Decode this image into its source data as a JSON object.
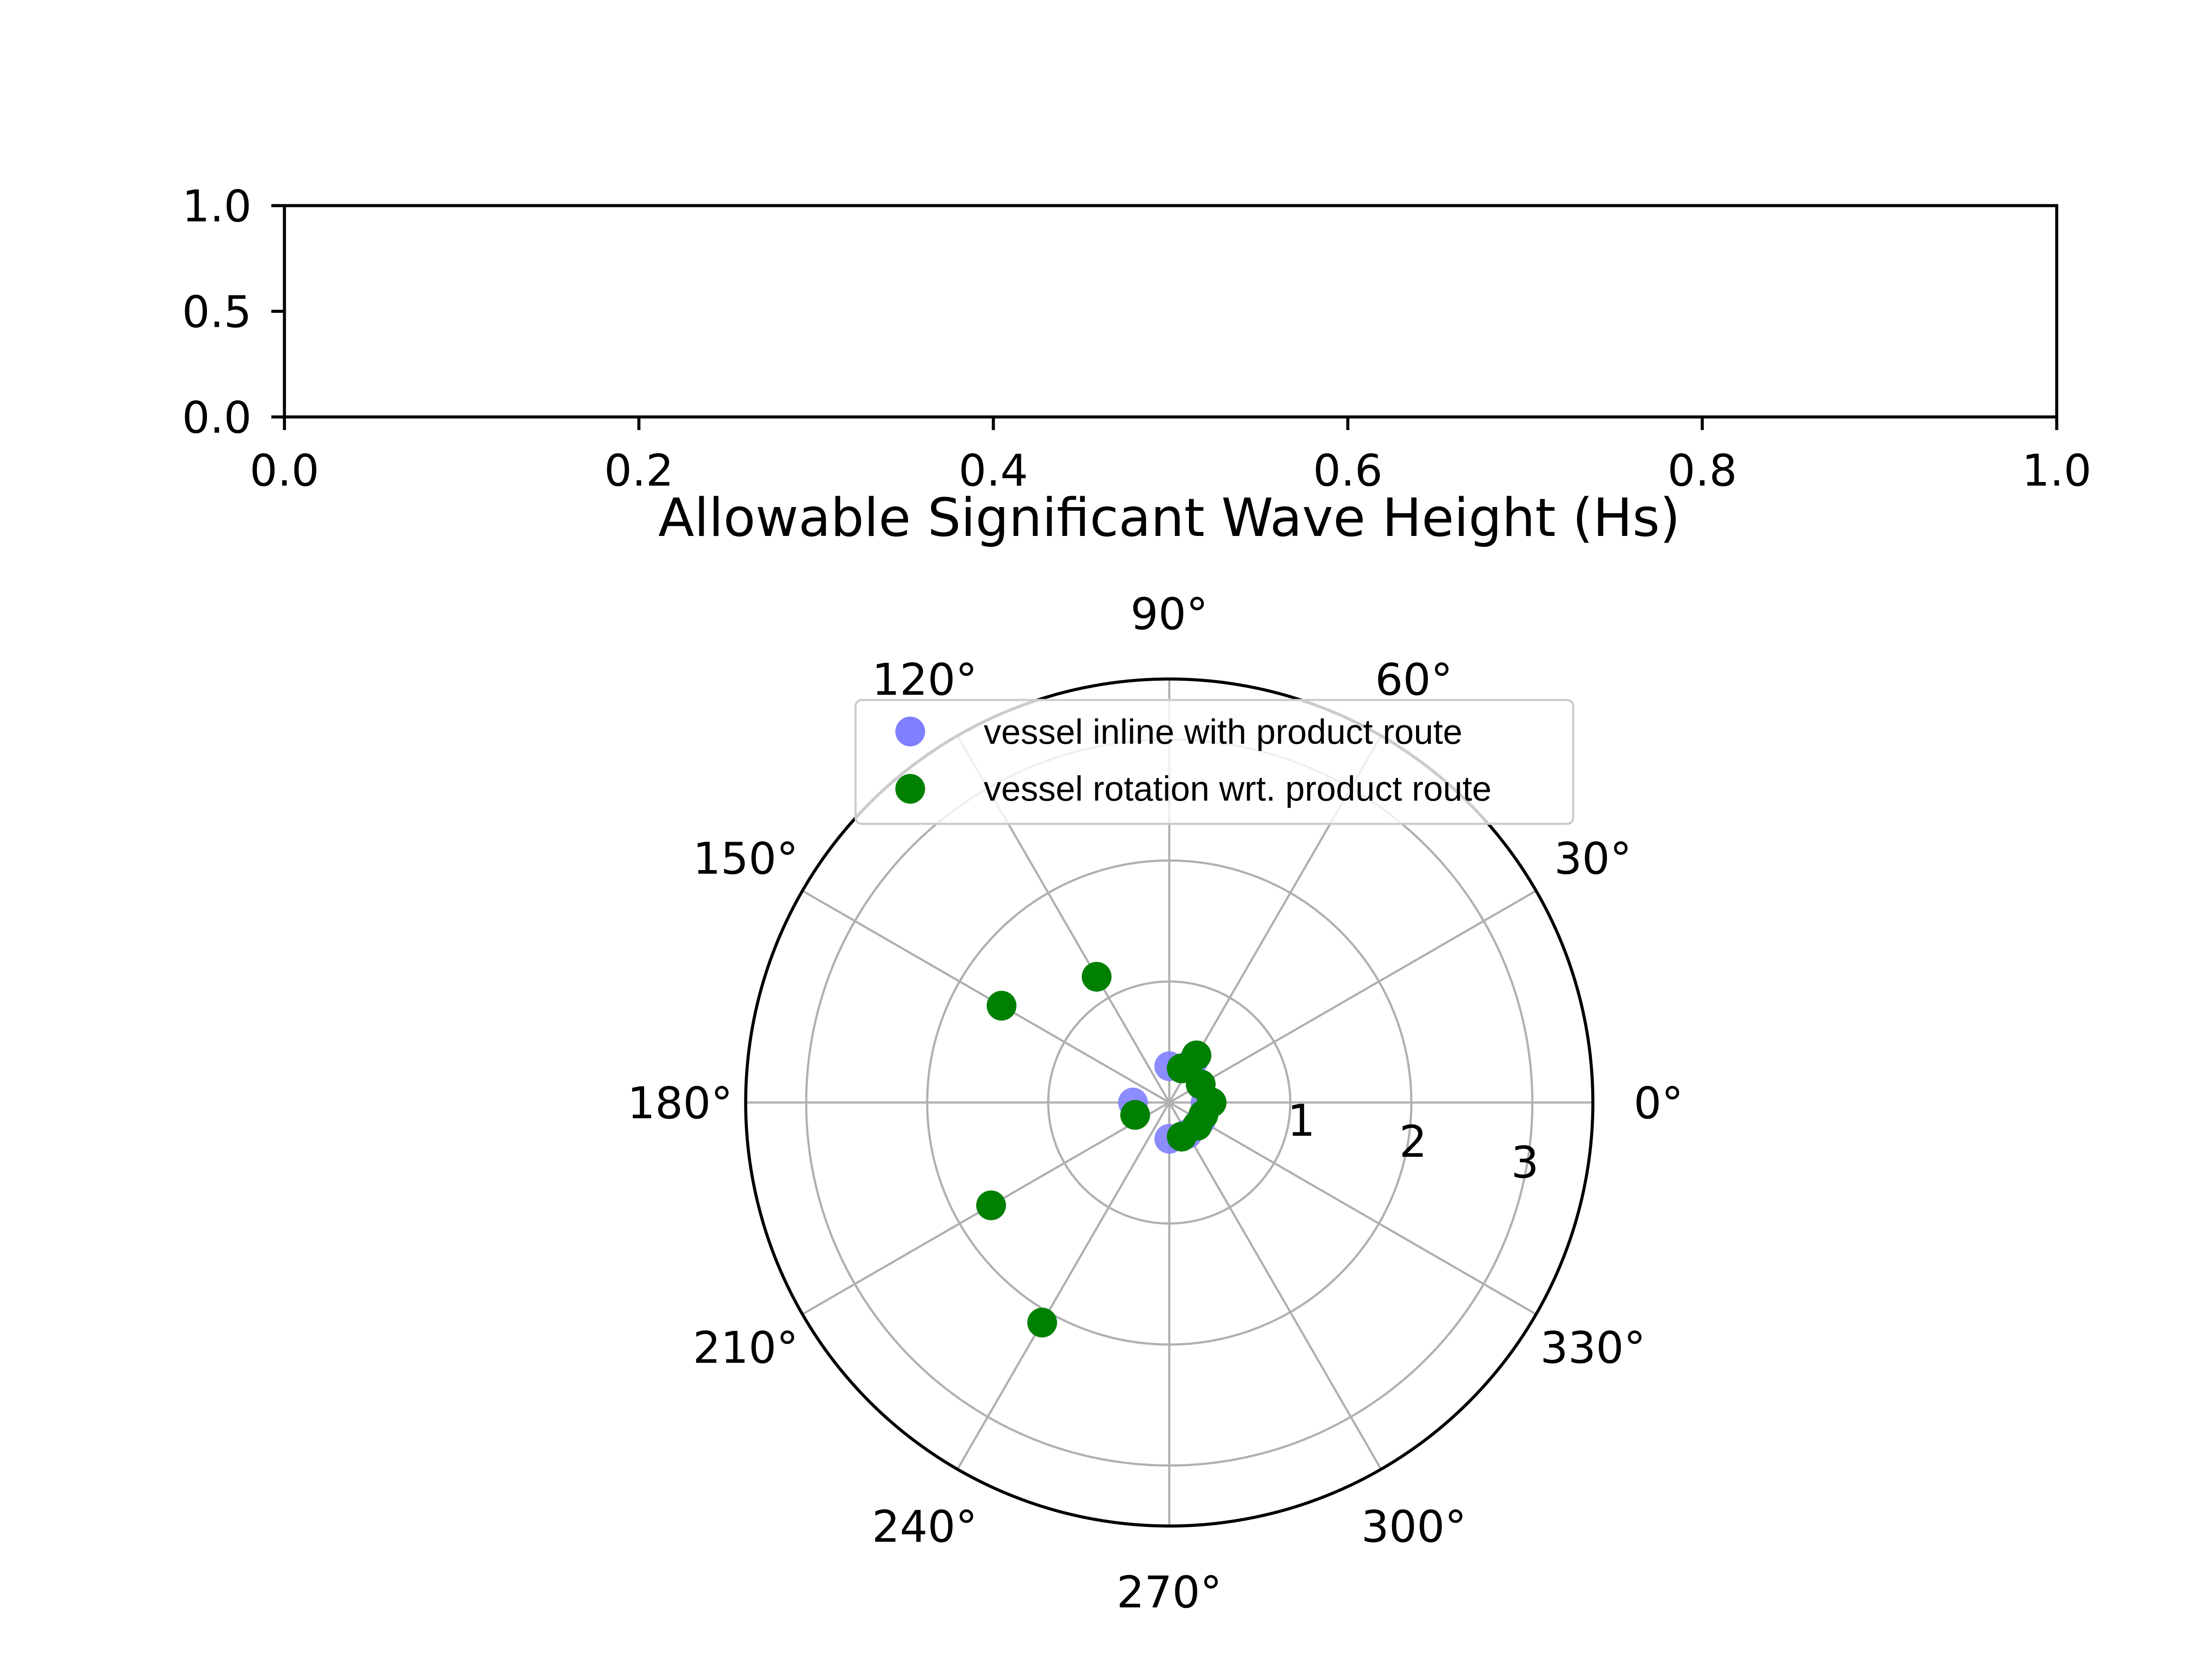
{
  "chart_data": [
    {
      "type": "scatter",
      "panel": "top",
      "xlim": [
        0.0,
        1.0
      ],
      "ylim": [
        0.0,
        1.0
      ],
      "x_ticks": [
        {
          "value": 0.0,
          "label": "0.0"
        },
        {
          "value": 0.2,
          "label": "0.2"
        },
        {
          "value": 0.4,
          "label": "0.4"
        },
        {
          "value": 0.6,
          "label": "0.6"
        },
        {
          "value": 0.8,
          "label": "0.8"
        },
        {
          "value": 1.0,
          "label": "1.0"
        }
      ],
      "y_ticks": [
        {
          "value": 0.0,
          "label": "0.0"
        },
        {
          "value": 0.5,
          "label": "0.5"
        },
        {
          "value": 1.0,
          "label": "1.0"
        }
      ],
      "series": [],
      "grid": false
    },
    {
      "type": "scatter",
      "projection": "polar",
      "title": "Allowable Significant Wave Height (Hs)",
      "rlim": [
        0,
        3.5
      ],
      "r_ticks": [
        {
          "value": 1,
          "label": "1"
        },
        {
          "value": 2,
          "label": "2"
        },
        {
          "value": 3,
          "label": "3"
        }
      ],
      "theta_ticks": [
        {
          "value": 0,
          "label": "0°"
        },
        {
          "value": 30,
          "label": "30°"
        },
        {
          "value": 60,
          "label": "60°"
        },
        {
          "value": 90,
          "label": "90°"
        },
        {
          "value": 120,
          "label": "120°"
        },
        {
          "value": 150,
          "label": "150°"
        },
        {
          "value": 180,
          "label": "180°"
        },
        {
          "value": 210,
          "label": "210°"
        },
        {
          "value": 240,
          "label": "240°"
        },
        {
          "value": 270,
          "label": "270°"
        },
        {
          "value": 300,
          "label": "300°"
        },
        {
          "value": 330,
          "label": "330°"
        }
      ],
      "grid": true,
      "legend_placement": "top-center",
      "series": [
        {
          "name": "vessel inline with product route",
          "color": "#7f7fff",
          "marker": "circle",
          "points": [
            {
              "theta": 0,
              "r": 0.3
            },
            {
              "theta": 30,
              "r": 0.3
            },
            {
              "theta": 60,
              "r": 0.4
            },
            {
              "theta": 90,
              "r": 0.3
            },
            {
              "theta": 120,
              "r": 1.2
            },
            {
              "theta": 150,
              "r": 1.6
            },
            {
              "theta": 180,
              "r": 0.3
            },
            {
              "theta": 210,
              "r": 1.7
            },
            {
              "theta": 240,
              "r": 2.1
            },
            {
              "theta": 270,
              "r": 0.3
            },
            {
              "theta": 300,
              "r": 0.3
            },
            {
              "theta": 330,
              "r": 0.3
            }
          ]
        },
        {
          "name": "vessel rotation wrt. product route",
          "color": "#008000",
          "marker": "circle",
          "points": [
            {
              "theta": 0,
              "r": 0.35
            },
            {
              "theta": 30,
              "r": 0.3
            },
            {
              "theta": 60,
              "r": 0.45
            },
            {
              "theta": 70,
              "r": 0.3
            },
            {
              "theta": 120,
              "r": 1.2
            },
            {
              "theta": 150,
              "r": 1.6
            },
            {
              "theta": 200,
              "r": 0.3
            },
            {
              "theta": 210,
              "r": 1.7
            },
            {
              "theta": 240,
              "r": 2.1
            },
            {
              "theta": 290,
              "r": 0.3
            },
            {
              "theta": 320,
              "r": 0.3
            },
            {
              "theta": 340,
              "r": 0.3
            }
          ]
        }
      ]
    }
  ]
}
